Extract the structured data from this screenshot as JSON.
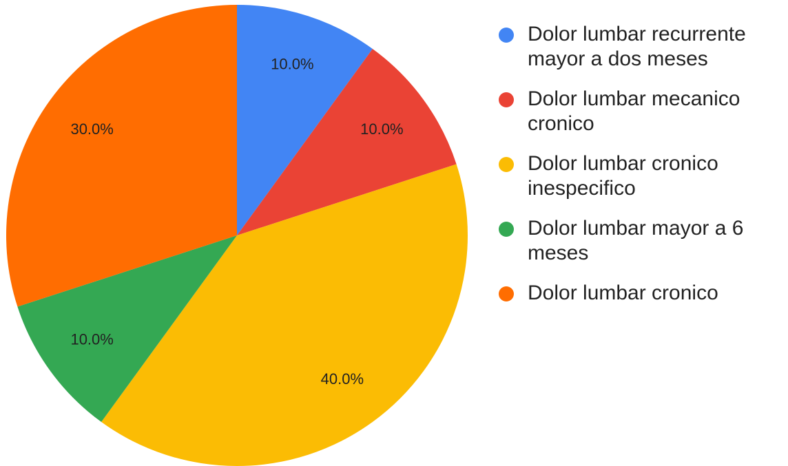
{
  "chart_data": {
    "type": "pie",
    "categories": [
      "Dolor lumbar recurrente mayor a dos meses",
      "Dolor lumbar mecanico cronico",
      "Dolor lumbar cronico inespecifico",
      "Dolor lumbar mayor a 6 meses",
      "Dolor lumbar cronico"
    ],
    "values": [
      10,
      10,
      40,
      10,
      30
    ],
    "value_labels": [
      "10.0%",
      "10.0%",
      "40.0%",
      "10.0%",
      "30.0%"
    ],
    "colors": [
      "#4285f4",
      "#ea4335",
      "#fbbc04",
      "#34a853",
      "#ff6d01"
    ],
    "legend": "right"
  }
}
